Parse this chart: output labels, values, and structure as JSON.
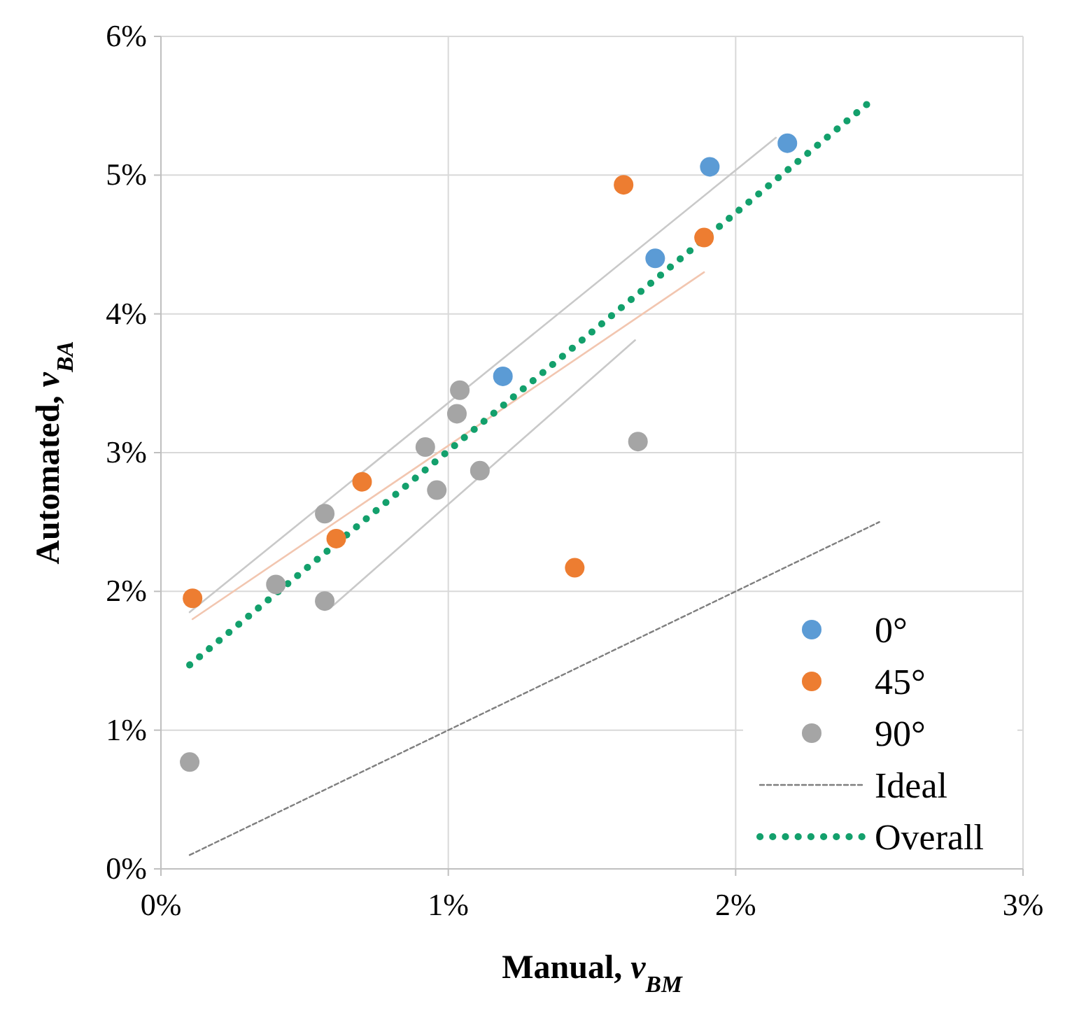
{
  "chart_data": {
    "type": "scatter",
    "xlabel": "Manual, v$_{BM}$",
    "ylabel": "Automated, v$_{BA}$",
    "xlim": [
      0,
      3
    ],
    "ylim": [
      0,
      6
    ],
    "xticks": [
      {
        "value": 0,
        "label": "0%"
      },
      {
        "value": 1,
        "label": "1%"
      },
      {
        "value": 2,
        "label": "2%"
      },
      {
        "value": 3,
        "label": "3%"
      }
    ],
    "yticks": [
      {
        "value": 0,
        "label": "0%"
      },
      {
        "value": 1,
        "label": "1%"
      },
      {
        "value": 2,
        "label": "2%"
      },
      {
        "value": 3,
        "label": "3%"
      },
      {
        "value": 4,
        "label": "4%"
      },
      {
        "value": 5,
        "label": "5%"
      },
      {
        "value": 6,
        "label": "6%"
      }
    ],
    "grid": true,
    "legend": "bottom right",
    "marker": "circle",
    "series": [
      {
        "type": "line",
        "color": "#c9c9c9",
        "x": [
          0.1,
          2.14
        ],
        "values": [
          1.85,
          5.27
        ],
        "marker": "none",
        "line_style": "solid"
      },
      {
        "type": "line",
        "color": "#f2c6b0",
        "x": [
          0.11,
          1.89
        ],
        "values": [
          1.8,
          4.3
        ],
        "marker": "none",
        "line_style": "solid"
      },
      {
        "type": "line",
        "color": "#c9c9c9",
        "x": [
          0.6,
          1.65
        ],
        "values": [
          1.9,
          3.81
        ],
        "marker": "none",
        "line_style": "solid"
      },
      {
        "name": "0°",
        "color": "#5b9bd5",
        "x": [
          1.19,
          1.72,
          1.91,
          2.18
        ],
        "values": [
          3.55,
          4.4,
          5.06,
          5.23
        ]
      },
      {
        "name": "45°",
        "color": "#ed7d31",
        "x": [
          0.11,
          0.61,
          0.7,
          1.44,
          1.61,
          1.89
        ],
        "values": [
          1.95,
          2.38,
          2.79,
          2.17,
          4.93,
          4.55
        ]
      },
      {
        "name": "90°",
        "color": "#a5a5a5",
        "x": [
          0.1,
          0.4,
          0.57,
          0.57,
          0.92,
          0.96,
          1.03,
          1.04,
          1.11,
          1.66
        ],
        "values": [
          0.77,
          2.05,
          1.93,
          2.56,
          3.04,
          2.73,
          3.28,
          3.45,
          2.87,
          3.08
        ]
      },
      {
        "name": "Ideal",
        "type": "line",
        "color": "#7f7f7f",
        "x": [
          0.1,
          2.5
        ],
        "values": [
          0.1,
          2.5
        ],
        "marker": "none",
        "line_style": "dashed"
      },
      {
        "name": "Overall",
        "type": "line",
        "color": "#13a06c",
        "x": [
          0.1,
          2.48
        ],
        "values": [
          1.47,
          5.55
        ],
        "marker": "none",
        "line_style": "dotted"
      }
    ]
  }
}
